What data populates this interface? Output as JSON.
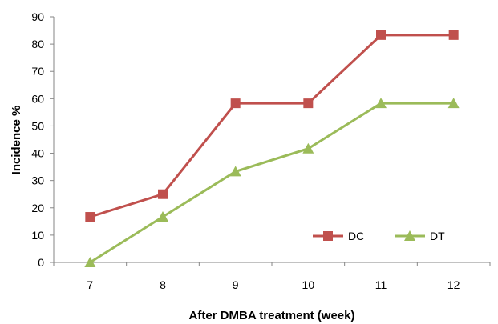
{
  "chart_data": {
    "type": "line",
    "title": "",
    "xlabel": "After DMBA treatment (week)",
    "ylabel": "Incidence %",
    "x": [
      "7",
      "8",
      "9",
      "10",
      "11",
      "12"
    ],
    "ylim": [
      0,
      90
    ],
    "yticks": [
      "0",
      "10",
      "20",
      "30",
      "40",
      "50",
      "60",
      "70",
      "80",
      "90"
    ],
    "grid": false,
    "legend_position": "bottom-right",
    "series": [
      {
        "name": "DC",
        "marker": "square",
        "color": "#c0504d",
        "values": [
          16.7,
          25,
          58.3,
          58.3,
          83.3,
          83.3
        ]
      },
      {
        "name": "DT",
        "marker": "triangle",
        "color": "#9bbb59",
        "values": [
          0,
          16.7,
          33.3,
          41.7,
          58.3,
          58.3
        ]
      }
    ]
  }
}
